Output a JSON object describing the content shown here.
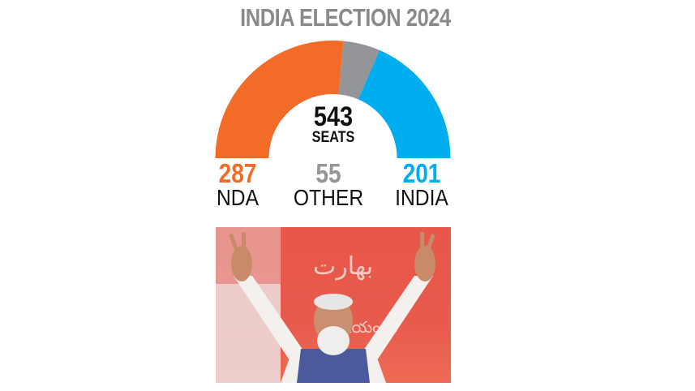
{
  "title": "INDIA ELECTION 2024",
  "total": {
    "value": "543",
    "label": "SEATS"
  },
  "legend": [
    {
      "value": "287",
      "name": "NDA",
      "color": "#f26b27"
    },
    {
      "value": "55",
      "name": "OTHER",
      "color": "#939598"
    },
    {
      "value": "201",
      "name": "INDIA",
      "color": "#00aeef"
    }
  ],
  "photo": {
    "description": "Man in white kurta and blue vest raising both hands in victory signs before a red backdrop",
    "backdrop_text": "بهارت"
  },
  "chart_data": {
    "type": "pie",
    "subtype": "semi-donut",
    "title": "INDIA ELECTION 2024",
    "center_label": "543 SEATS",
    "categories": [
      "NDA",
      "OTHER",
      "INDIA"
    ],
    "values": [
      287,
      55,
      201
    ],
    "colors": [
      "#f26b27",
      "#939598",
      "#00aeef"
    ],
    "total": 543,
    "legend_position": "bottom"
  }
}
